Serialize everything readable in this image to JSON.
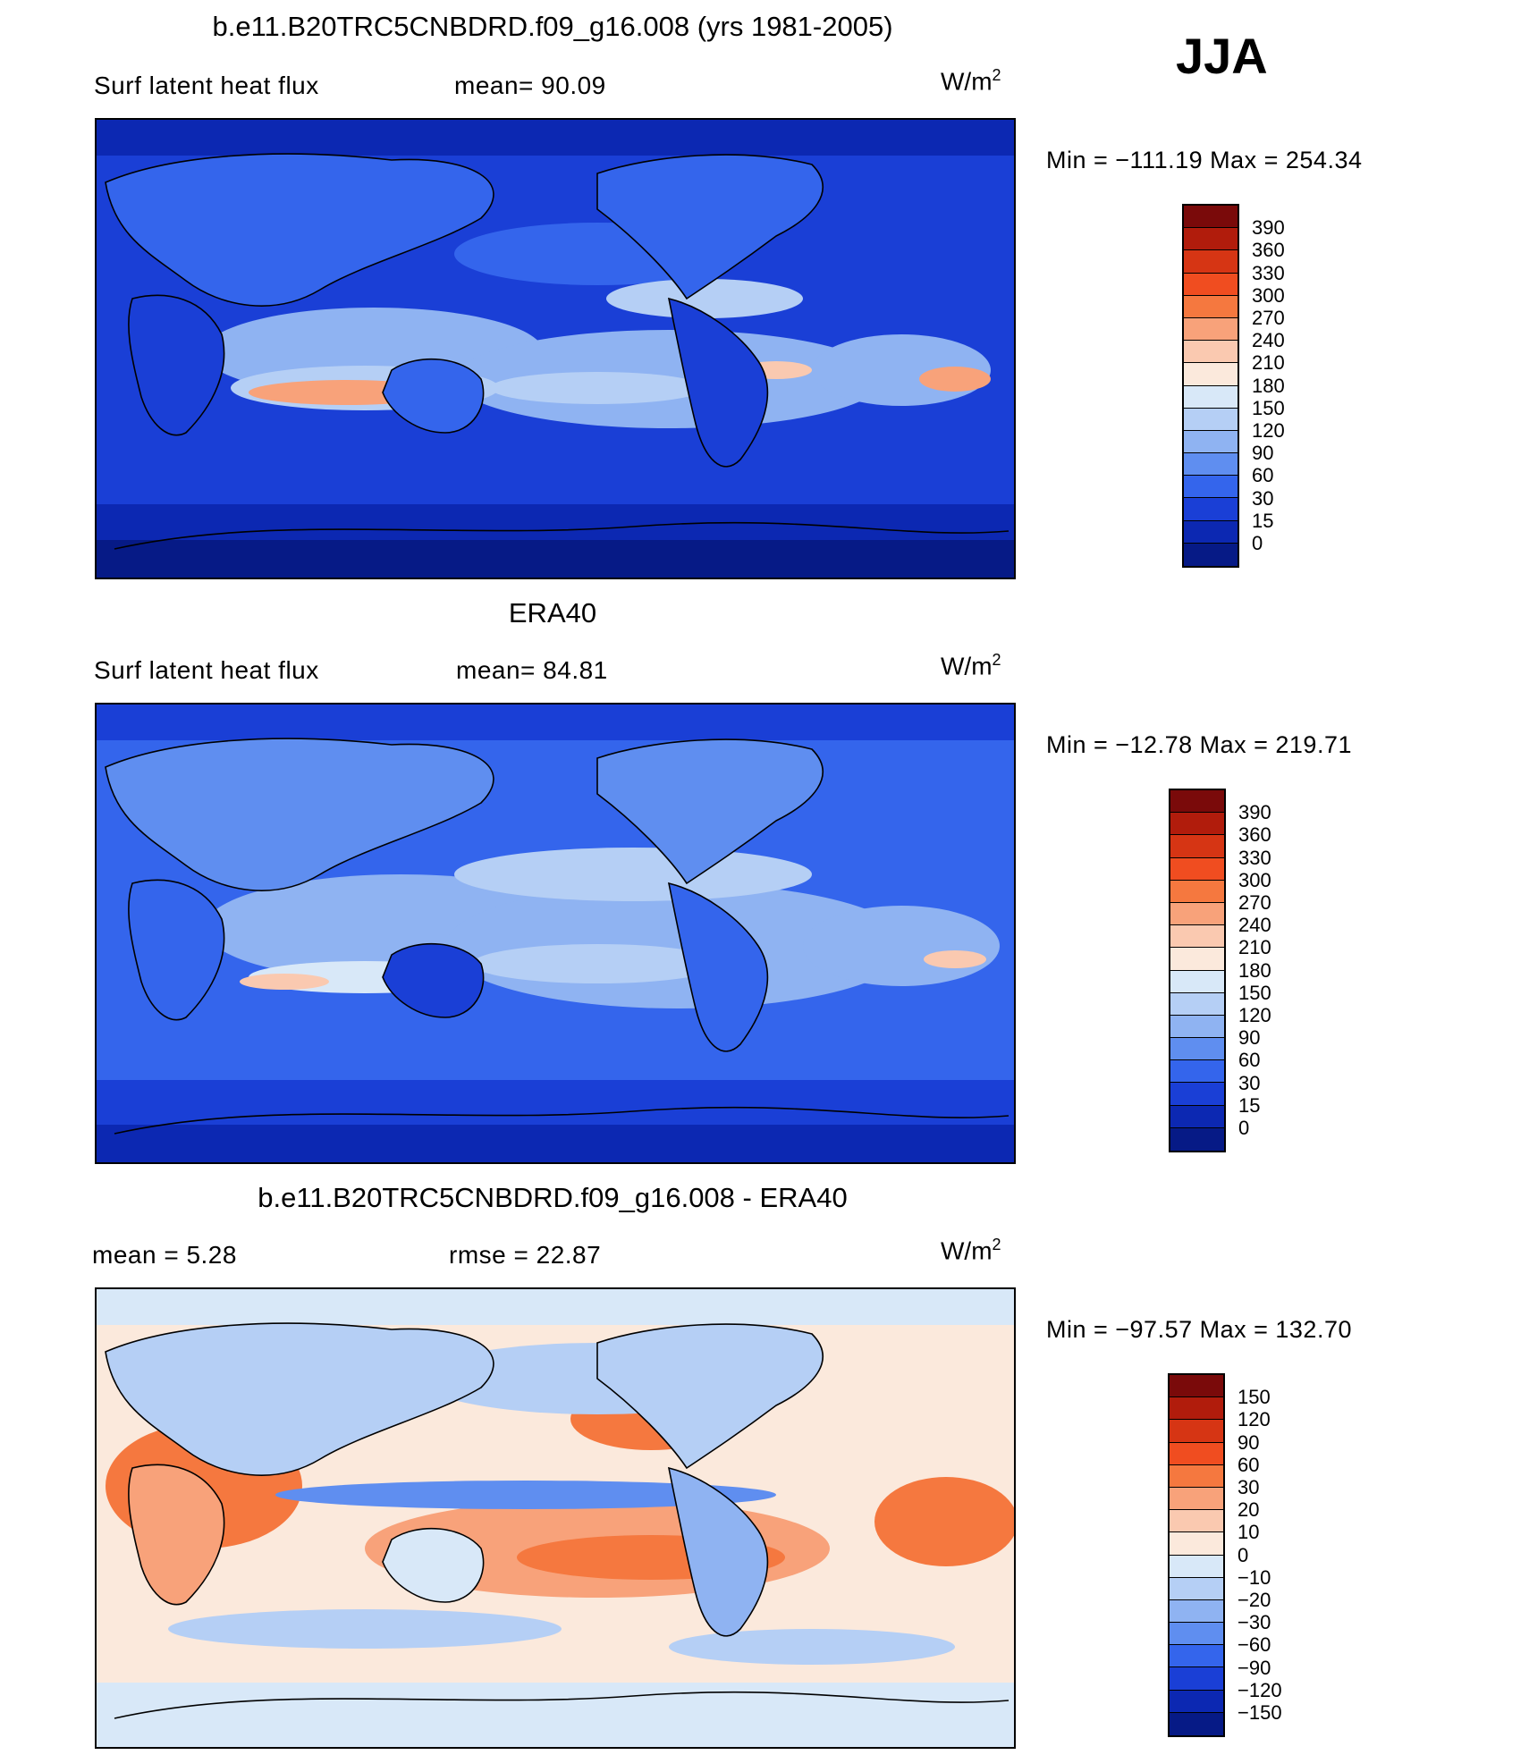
{
  "season": "JJA",
  "panels": [
    {
      "id": "model",
      "title": "b.e11.B20TRC5CNBDRD.f09_g16.008 (yrs 1981-2005)",
      "left_text": "Surf  latent  heat  flux",
      "middle_text": "mean=   90.09",
      "unit_base": "W/m",
      "unit_sup": "2",
      "minmax": "Min  =  −111.19  Max  =  254.34",
      "colorbar_labels": [
        "390",
        "360",
        "330",
        "300",
        "270",
        "240",
        "210",
        "180",
        "150",
        "120",
        "90",
        "60",
        "30",
        "15",
        "0"
      ],
      "colors": [
        "#7a0a0a",
        "#b11c0c",
        "#d63514",
        "#f04d20",
        "#f5783f",
        "#f8a27a",
        "#fac9b0",
        "#fbe9dc",
        "#d8e8f8",
        "#b5cff5",
        "#8fb3f2",
        "#5f8ef0",
        "#3465ec",
        "#1a3fd6",
        "#0c28b2",
        "#061a86"
      ]
    },
    {
      "id": "obs",
      "title": "ERA40",
      "left_text": "Surf  latent  heat  flux",
      "middle_text": "mean=   84.81",
      "unit_base": "W/m",
      "unit_sup": "2",
      "minmax": "Min  =  −12.78  Max  =  219.71",
      "colorbar_labels": [
        "390",
        "360",
        "330",
        "300",
        "270",
        "240",
        "210",
        "180",
        "150",
        "120",
        "90",
        "60",
        "30",
        "15",
        "0"
      ],
      "colors": [
        "#7a0a0a",
        "#b11c0c",
        "#d63514",
        "#f04d20",
        "#f5783f",
        "#f8a27a",
        "#fac9b0",
        "#fbe9dc",
        "#d8e8f8",
        "#b5cff5",
        "#8fb3f2",
        "#5f8ef0",
        "#3465ec",
        "#1a3fd6",
        "#0c28b2",
        "#061a86"
      ]
    },
    {
      "id": "diff",
      "title": "b.e11.B20TRC5CNBDRD.f09_g16.008 - ERA40",
      "left_text": "mean  =      5.28",
      "middle_text": "rmse  =    22.87",
      "unit_base": "W/m",
      "unit_sup": "2",
      "minmax": "Min  =  −97.57  Max  =  132.70",
      "colorbar_labels": [
        "150",
        "120",
        "90",
        "60",
        "30",
        "20",
        "10",
        "0",
        "−10",
        "−20",
        "−30",
        "−60",
        "−90",
        "−120",
        "−150"
      ],
      "colors": [
        "#7a0a0a",
        "#b11c0c",
        "#d63514",
        "#f04d20",
        "#f5783f",
        "#f8a27a",
        "#fac9b0",
        "#fbe9dc",
        "#d8e8f8",
        "#b5cff5",
        "#8fb3f2",
        "#5f8ef0",
        "#3465ec",
        "#1a3fd6",
        "#0c28b2",
        "#061a86"
      ]
    }
  ]
}
